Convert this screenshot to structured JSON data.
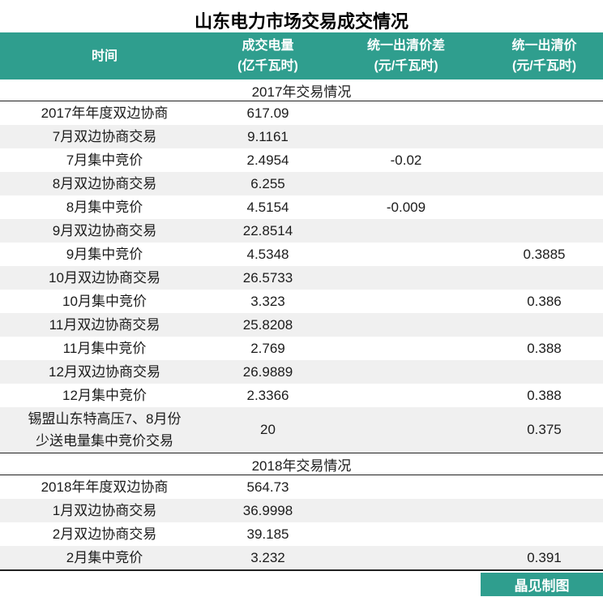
{
  "title": "山东电力市场交易成交情况",
  "colors": {
    "accent_teal": "#2f9e8e",
    "row_alt_gray": "#f0f0f0",
    "divider": "#222222"
  },
  "footer": {
    "credit": "晶见制图"
  },
  "chart_data": {
    "type": "table",
    "title": "山东电力市场交易成交情况",
    "columns": [
      {
        "label": "时间",
        "unit": ""
      },
      {
        "label": "成交电量",
        "unit": "(亿千瓦时)"
      },
      {
        "label": "统一出清价差",
        "unit": "(元/千瓦时)"
      },
      {
        "label": "统一出清价",
        "unit": "(元/千瓦时)"
      }
    ],
    "sections": [
      {
        "header": "2017年交易情况",
        "rows": [
          [
            "2017年年度双边协商",
            "617.09",
            "",
            ""
          ],
          [
            "7月双边协商交易",
            "9.1161",
            "",
            ""
          ],
          [
            "7月集中竞价",
            "2.4954",
            "-0.02",
            ""
          ],
          [
            "8月双边协商交易",
            "6.255",
            "",
            ""
          ],
          [
            "8月集中竞价",
            "4.5154",
            "-0.009",
            ""
          ],
          [
            "9月双边协商交易",
            "22.8514",
            "",
            ""
          ],
          [
            "9月集中竞价",
            "4.5348",
            "",
            "0.3885"
          ],
          [
            "10月双边协商交易",
            "26.5733",
            "",
            ""
          ],
          [
            "10月集中竞价",
            "3.323",
            "",
            "0.386"
          ],
          [
            "11月双边协商交易",
            "25.8208",
            "",
            ""
          ],
          [
            "11月集中竞价",
            "2.769",
            "",
            "0.388"
          ],
          [
            "12月双边协商交易",
            "26.9889",
            "",
            ""
          ],
          [
            "12月集中竞价",
            "2.3366",
            "",
            "0.388"
          ],
          [
            "锡盟山东特高压7、8月份\n少送电量集中竞价交易",
            "20",
            "",
            "0.375"
          ]
        ]
      },
      {
        "header": "2018年交易情况",
        "rows": [
          [
            "2018年年度双边协商",
            "564.73",
            "",
            ""
          ],
          [
            "1月双边协商交易",
            "36.9998",
            "",
            ""
          ],
          [
            "2月双边协商交易",
            "39.185",
            "",
            ""
          ],
          [
            "2月集中竞价",
            "3.232",
            "",
            "0.391"
          ]
        ]
      }
    ]
  }
}
